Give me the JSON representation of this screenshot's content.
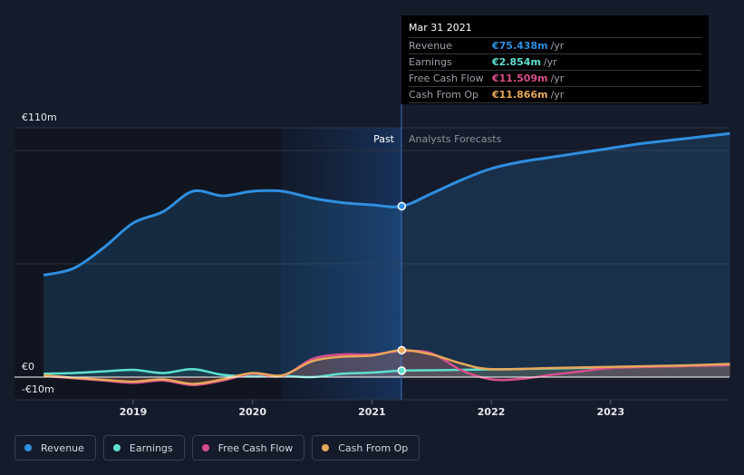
{
  "chart_data": {
    "type": "line",
    "x_tick_labels": [
      "2019",
      "2020",
      "2021",
      "2022",
      "2023"
    ],
    "y_tick_labels": [
      "€110m",
      "€0",
      "-€10m"
    ],
    "ylim": [
      -10,
      110
    ],
    "period_labels": {
      "past": "Past",
      "forecast": "Analysts Forecasts"
    },
    "forecast_start": 2021.25,
    "grid": true,
    "legend_position": "bottom-left",
    "series": [
      {
        "name": "Revenue",
        "color": "#2f8fe0",
        "x": [
          2018.25,
          2018.5,
          2018.75,
          2019.0,
          2019.25,
          2019.5,
          2019.75,
          2020.0,
          2020.25,
          2020.5,
          2020.75,
          2021.0,
          2021.25,
          2021.5,
          2021.75,
          2022.0,
          2022.25,
          2022.5,
          2022.75,
          2023.0,
          2023.25,
          2023.5,
          2023.75,
          2024.0
        ],
        "values": [
          45,
          48,
          57,
          68,
          73,
          82,
          80,
          82,
          82,
          79,
          77,
          76,
          75.4,
          81,
          87,
          92,
          95,
          97,
          99,
          101,
          103,
          104.5,
          106,
          107.5
        ]
      },
      {
        "name": "Earnings",
        "color": "#5ee0d0",
        "x": [
          2018.25,
          2018.5,
          2018.75,
          2019.0,
          2019.25,
          2019.5,
          2019.75,
          2020.0,
          2020.25,
          2020.5,
          2020.75,
          2021.0,
          2021.25,
          2021.5,
          2021.75,
          2022.0,
          2022.5,
          2023.0,
          2023.5,
          2024.0
        ],
        "values": [
          1.5,
          1.8,
          2.5,
          3.2,
          1.8,
          3.5,
          1.0,
          0.3,
          0.5,
          0.0,
          1.5,
          2.0,
          2.85,
          3.0,
          3.2,
          3.4,
          3.8,
          4.3,
          4.8,
          5.3
        ]
      },
      {
        "name": "Free Cash Flow",
        "color": "#d84e8c",
        "x": [
          2018.25,
          2018.5,
          2018.75,
          2019.0,
          2019.25,
          2019.5,
          2019.75,
          2020.0,
          2020.25,
          2020.5,
          2020.75,
          2021.0,
          2021.25,
          2021.5,
          2021.75,
          2022.0,
          2022.25,
          2022.5,
          2022.75,
          2023.0,
          2023.5,
          2024.0
        ],
        "values": [
          0.5,
          -0.5,
          -1.5,
          -2.5,
          -1.5,
          -3.5,
          -1.5,
          1.5,
          0.5,
          8,
          10,
          10,
          11.5,
          10.5,
          3,
          -1,
          -0.8,
          1,
          2.5,
          4,
          4.7,
          5.3
        ]
      },
      {
        "name": "Cash From Op",
        "color": "#e8a85a",
        "x": [
          2018.25,
          2018.5,
          2018.75,
          2019.0,
          2019.25,
          2019.5,
          2019.75,
          2020.0,
          2020.25,
          2020.5,
          2020.75,
          2021.0,
          2021.25,
          2021.5,
          2021.75,
          2022.0,
          2022.5,
          2023.0,
          2023.5,
          2024.0
        ],
        "values": [
          0.8,
          -0.3,
          -1.2,
          -2.0,
          -1.0,
          -3.0,
          -1.0,
          1.8,
          0.8,
          7,
          9,
          9.5,
          11.87,
          10,
          6,
          3.5,
          4,
          4.5,
          5,
          5.8
        ]
      }
    ],
    "tooltip": {
      "date": "Mar 31 2021",
      "rows": [
        {
          "label": "Revenue",
          "value": "€75.438m",
          "unit": "/yr",
          "color": "#2f8fe0"
        },
        {
          "label": "Earnings",
          "value": "€2.854m",
          "unit": "/yr",
          "color": "#5ee0d0"
        },
        {
          "label": "Free Cash Flow",
          "value": "€11.509m",
          "unit": "/yr",
          "color": "#d84e8c"
        },
        {
          "label": "Cash From Op",
          "value": "€11.866m",
          "unit": "/yr",
          "color": "#e8a85a"
        }
      ]
    }
  },
  "legend": [
    {
      "label": "Revenue",
      "color": "#2f8fe0"
    },
    {
      "label": "Earnings",
      "color": "#5ee0d0"
    },
    {
      "label": "Free Cash Flow",
      "color": "#d84e8c"
    },
    {
      "label": "Cash From Op",
      "color": "#e8a85a"
    }
  ]
}
